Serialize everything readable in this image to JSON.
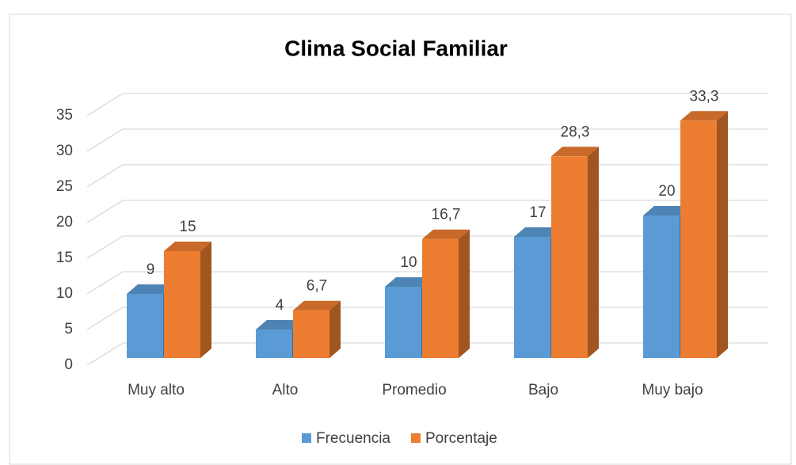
{
  "chart_data": {
    "type": "bar3d",
    "title": "Clima Social Familiar",
    "categories": [
      "Muy alto",
      "Alto",
      "Promedio",
      "Bajo",
      "Muy bajo"
    ],
    "series": [
      {
        "name": "Frecuencia",
        "color": "#5b9bd5",
        "values": [
          9,
          4,
          10,
          17,
          20
        ]
      },
      {
        "name": "Porcentaje",
        "color": "#ed7d31",
        "values": [
          15,
          6.7,
          16.7,
          28.3,
          33.3
        ],
        "value_labels": [
          "15",
          "6,7",
          "16,7",
          "28,3",
          "33,3"
        ]
      }
    ],
    "ylim": [
      0,
      35
    ],
    "yticks": [
      0,
      5,
      10,
      15,
      20,
      25,
      30,
      35
    ],
    "grid": true,
    "legend": "bottom"
  }
}
